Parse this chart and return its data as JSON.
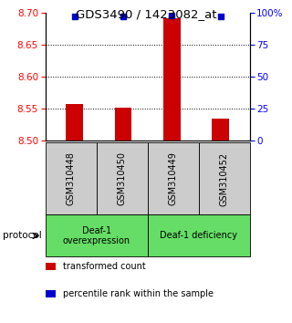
{
  "title": "GDS3490 / 1423082_at",
  "samples": [
    "GSM310448",
    "GSM310450",
    "GSM310449",
    "GSM310452"
  ],
  "bar_values": [
    8.557,
    8.552,
    8.692,
    8.535
  ],
  "percentile_values": [
    97,
    97,
    98,
    97
  ],
  "ylim_left": [
    8.5,
    8.7
  ],
  "ylim_right": [
    0,
    100
  ],
  "yticks_left": [
    8.5,
    8.55,
    8.6,
    8.65,
    8.7
  ],
  "yticks_right": [
    0,
    25,
    50,
    75,
    100
  ],
  "ytick_labels_right": [
    "0",
    "25",
    "50",
    "75",
    "100%"
  ],
  "bar_color": "#cc0000",
  "dot_color": "#0000cc",
  "bar_bottom": 8.5,
  "group1_label": "Deaf-1\noverexpression",
  "group2_label": "Deaf-1 deficiency",
  "group_color": "#66dd66",
  "protocol_label": "protocol",
  "legend": [
    {
      "color": "#cc0000",
      "label": "transformed count"
    },
    {
      "color": "#0000cc",
      "label": "percentile rank within the sample"
    }
  ],
  "grid_yticks": [
    8.55,
    8.6,
    8.65
  ],
  "background_color": "#ffffff",
  "sample_box_color": "#cccccc"
}
